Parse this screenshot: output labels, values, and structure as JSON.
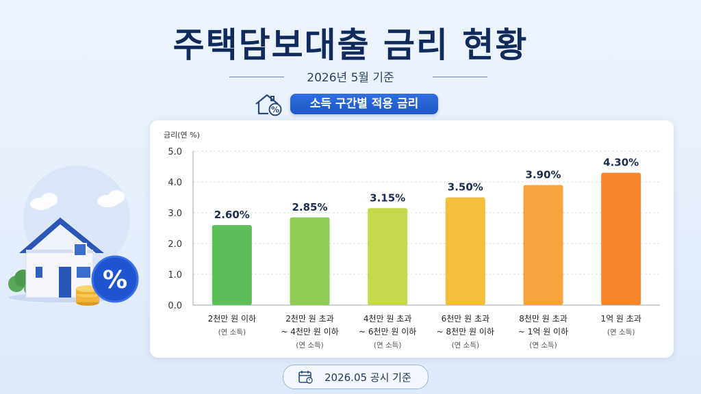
{
  "header": {
    "title": "주택담보대출 금리 현황",
    "subtitle": "2026년 5월 기준",
    "badge_label": "소득 구간별 적용 금리"
  },
  "footer": {
    "label": "2026.05 공시 기준"
  },
  "icons": {
    "badge": "house-percent-icon",
    "footer": "calendar-icon",
    "illustration": "house-with-percent-badge-icon"
  },
  "colors": {
    "title": "#102a5c",
    "badge": "#2563d9",
    "bars": [
      "#5cbf5a",
      "#8dcc55",
      "#c6d94a",
      "#f4be3a",
      "#f7a33b",
      "#f8862c"
    ]
  },
  "chart_data": {
    "type": "bar",
    "ylabel": "금리(연 %)",
    "ylim": [
      0,
      5.0
    ],
    "yticks": [
      "0.0",
      "1.0",
      "2.0",
      "3.0",
      "4.0",
      "5.0"
    ],
    "grid": true,
    "categories": [
      [
        "2천만 원 이하",
        "(연 소득)"
      ],
      [
        "2천만 원 초과",
        "~ 4천만 원 이하",
        "(연 소득)"
      ],
      [
        "4천만 원 초과",
        "~ 6천만 원 이하",
        "(연 소득)"
      ],
      [
        "6천만 원 초과",
        "~ 8천만 원 이하",
        "(연 소득)"
      ],
      [
        "8천만 원 초과",
        "~ 1억 원 이하",
        "(연 소득)"
      ],
      [
        "1억 원 초과",
        "(연 소득)"
      ]
    ],
    "values": [
      2.6,
      2.85,
      3.15,
      3.5,
      3.9,
      4.3
    ],
    "data_labels": [
      "2.60%",
      "2.85%",
      "3.15%",
      "3.50%",
      "3.90%",
      "4.30%"
    ]
  }
}
